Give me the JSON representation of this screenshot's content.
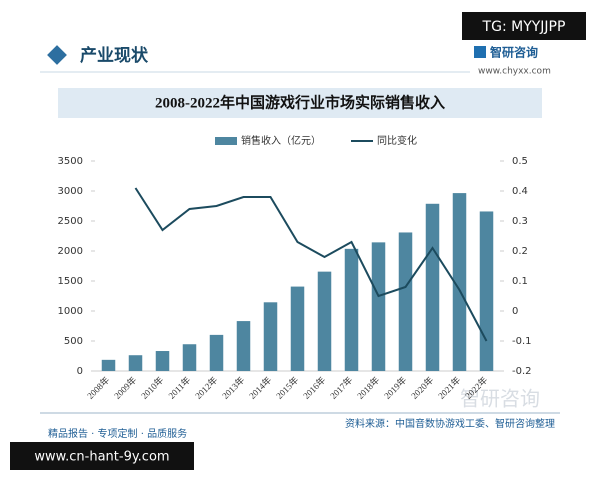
{
  "header": {
    "section": "产业现状",
    "tag": "TG: MYYJJPP",
    "logo": "智研咨询",
    "url": "www.chyxx.com"
  },
  "chart_data": {
    "type": "bar_line",
    "title": "2008-2022年中国游戏行业市场实际销售收入",
    "categories": [
      "2008年",
      "2009年",
      "2010年",
      "2011年",
      "2012年",
      "2013年",
      "2014年",
      "2015年",
      "2016年",
      "2017年",
      "2018年",
      "2019年",
      "2020年",
      "2021年",
      "2022年"
    ],
    "series": [
      {
        "name": "销售收入（亿元）",
        "type": "bar",
        "color": "#4e86a0",
        "values": [
          186,
          263,
          333,
          446,
          602,
          832,
          1145,
          1407,
          1656,
          2036,
          2144,
          2309,
          2787,
          2965,
          2659
        ]
      },
      {
        "name": "同比变化",
        "type": "line",
        "axis": "y2",
        "color": "#1c4b5e",
        "values": [
          null,
          0.41,
          0.27,
          0.34,
          0.35,
          0.38,
          0.38,
          0.23,
          0.18,
          0.23,
          0.05,
          0.08,
          0.21,
          0.07,
          -0.1
        ]
      }
    ],
    "ylim": [
      0,
      3500
    ],
    "yticks": [
      0,
      500,
      1000,
      1500,
      2000,
      2500,
      3000,
      3500
    ],
    "y2lim": [
      -0.2,
      0.5
    ],
    "y2ticks": [
      -0.2,
      -0.1,
      0,
      0.1,
      0.2,
      0.3,
      0.4,
      0.5
    ],
    "legend": "top"
  },
  "footer": {
    "source": "资料来源：中国音数协游戏工委、智研咨询整理",
    "slogan": "精品报告 · 专项定制 · 品质服务",
    "watermark": "智研咨询",
    "site": "www.cn-hant-9y.com"
  }
}
